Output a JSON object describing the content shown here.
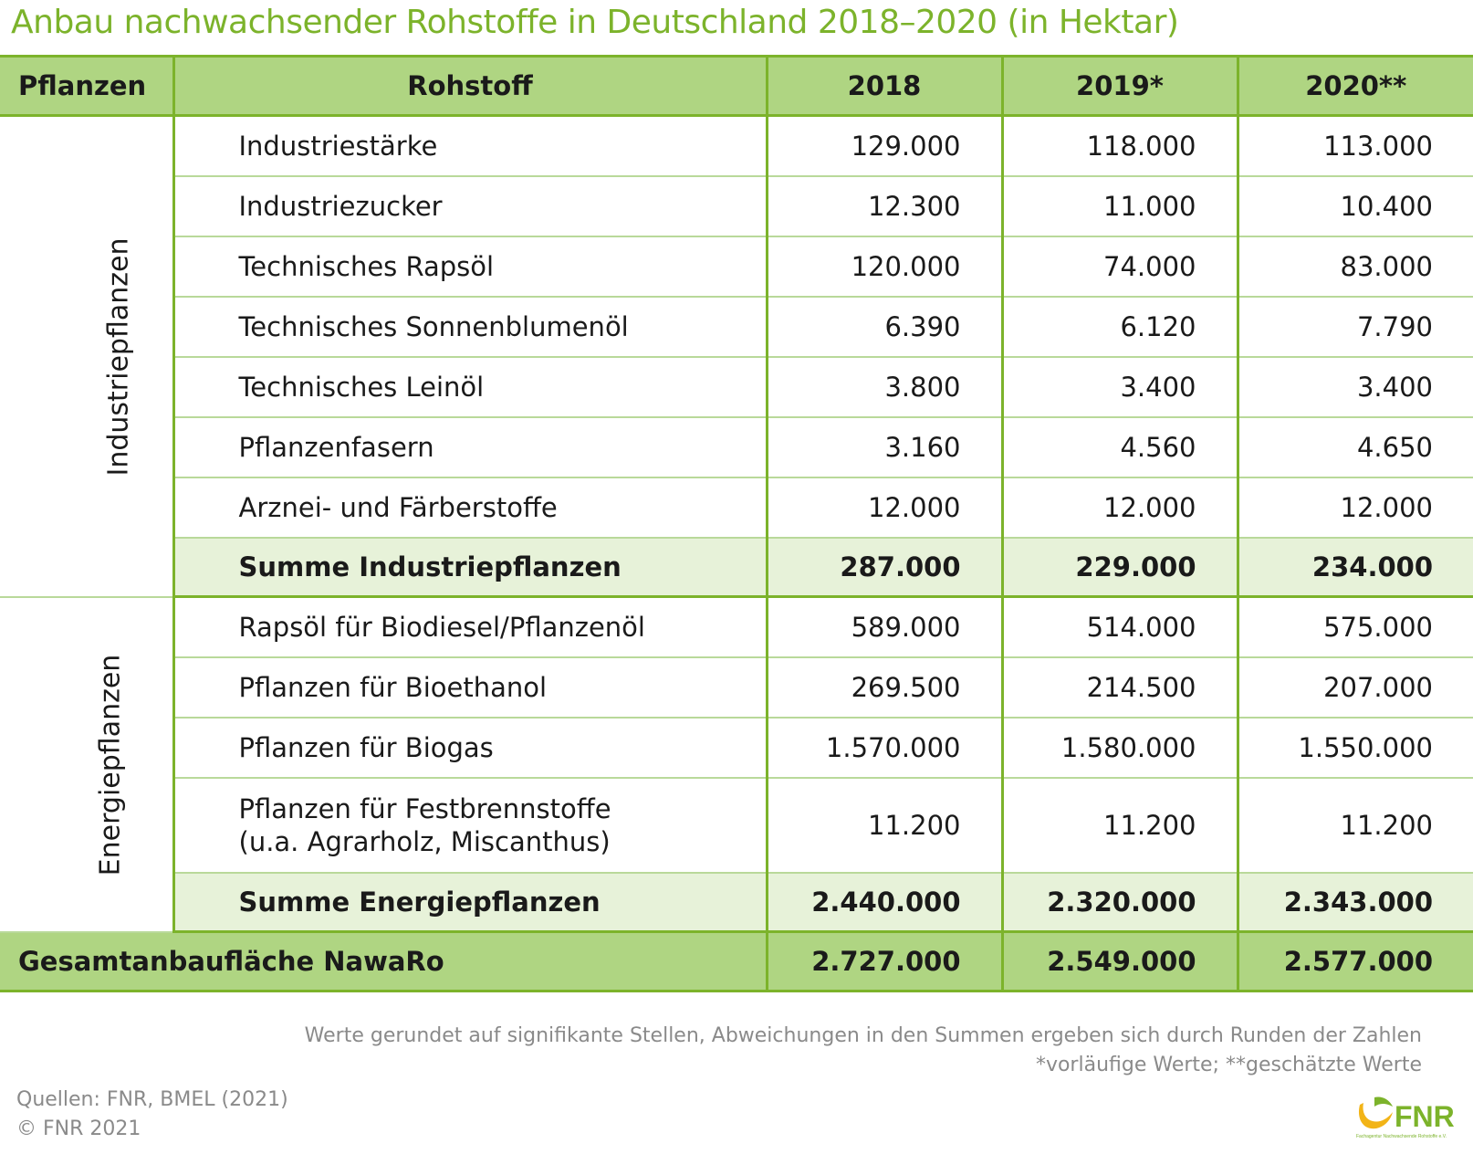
{
  "title": "Anbau nachwachsender Rohstoffe in Deutschland 2018–2020 (in Hektar)",
  "colors": {
    "accent": "#7cb32b",
    "header_bg": "#afd582",
    "sum_bg": "#e7f2d9",
    "row_line": "#b9d99a"
  },
  "chart_data": {
    "type": "table",
    "columns": [
      "Pflanzen",
      "Rohstoff",
      "2018",
      "2019*",
      "2020**"
    ],
    "groups": [
      {
        "label": "Industriepflanzen",
        "rows": [
          {
            "name": "Industriestärke",
            "values": [
              "129.000",
              "118.000",
              "113.000"
            ]
          },
          {
            "name": "Industriezucker",
            "values": [
              "12.300",
              "11.000",
              "10.400"
            ]
          },
          {
            "name": "Technisches Rapsöl",
            "values": [
              "120.000",
              "74.000",
              "83.000"
            ]
          },
          {
            "name": "Technisches Sonnenblumenöl",
            "values": [
              "6.390",
              "6.120",
              "7.790"
            ]
          },
          {
            "name": "Technisches Leinöl",
            "values": [
              "3.800",
              "3.400",
              "3.400"
            ]
          },
          {
            "name": "Pflanzenfasern",
            "values": [
              "3.160",
              "4.560",
              "4.650"
            ]
          },
          {
            "name": "Arznei- und Färberstoffe",
            "values": [
              "12.000",
              "12.000",
              "12.000"
            ]
          }
        ],
        "sum": {
          "name": "Summe Industriepflanzen",
          "values": [
            "287.000",
            "229.000",
            "234.000"
          ]
        }
      },
      {
        "label": "Energiepflanzen",
        "rows": [
          {
            "name": "Rapsöl für Biodiesel/Pflanzenöl",
            "values": [
              "589.000",
              "514.000",
              "575.000"
            ]
          },
          {
            "name": "Pflanzen für Bioethanol",
            "values": [
              "269.500",
              "214.500",
              "207.000"
            ]
          },
          {
            "name": "Pflanzen für Biogas",
            "values": [
              "1.570.000",
              "1.580.000",
              "1.550.000"
            ]
          },
          {
            "name": "Pflanzen für Festbrennstoffe",
            "name2": "(u.a. Agrarholz, Miscanthus)",
            "values": [
              "11.200",
              "11.200",
              "11.200"
            ]
          }
        ],
        "sum": {
          "name": "Summe Energiepflanzen",
          "values": [
            "2.440.000",
            "2.320.000",
            "2.343.000"
          ]
        }
      }
    ],
    "total": {
      "name": "Gesamtanbaufläche NawaRo",
      "values": [
        "2.727.000",
        "2.549.000",
        "2.577.000"
      ]
    }
  },
  "notes": {
    "line1": "Werte gerundet auf signifikante Stellen, Abweichungen in den Summen ergeben sich durch Runden der Zahlen",
    "line2": "*vorläufige Werte; **geschätzte Werte"
  },
  "sources": {
    "line1": "Quellen: FNR, BMEL (2021)",
    "line2": "© FNR 2021"
  },
  "logo": {
    "text": "FNR",
    "subtext": "Fachagentur Nachwachsende Rohstoffe e.V."
  }
}
